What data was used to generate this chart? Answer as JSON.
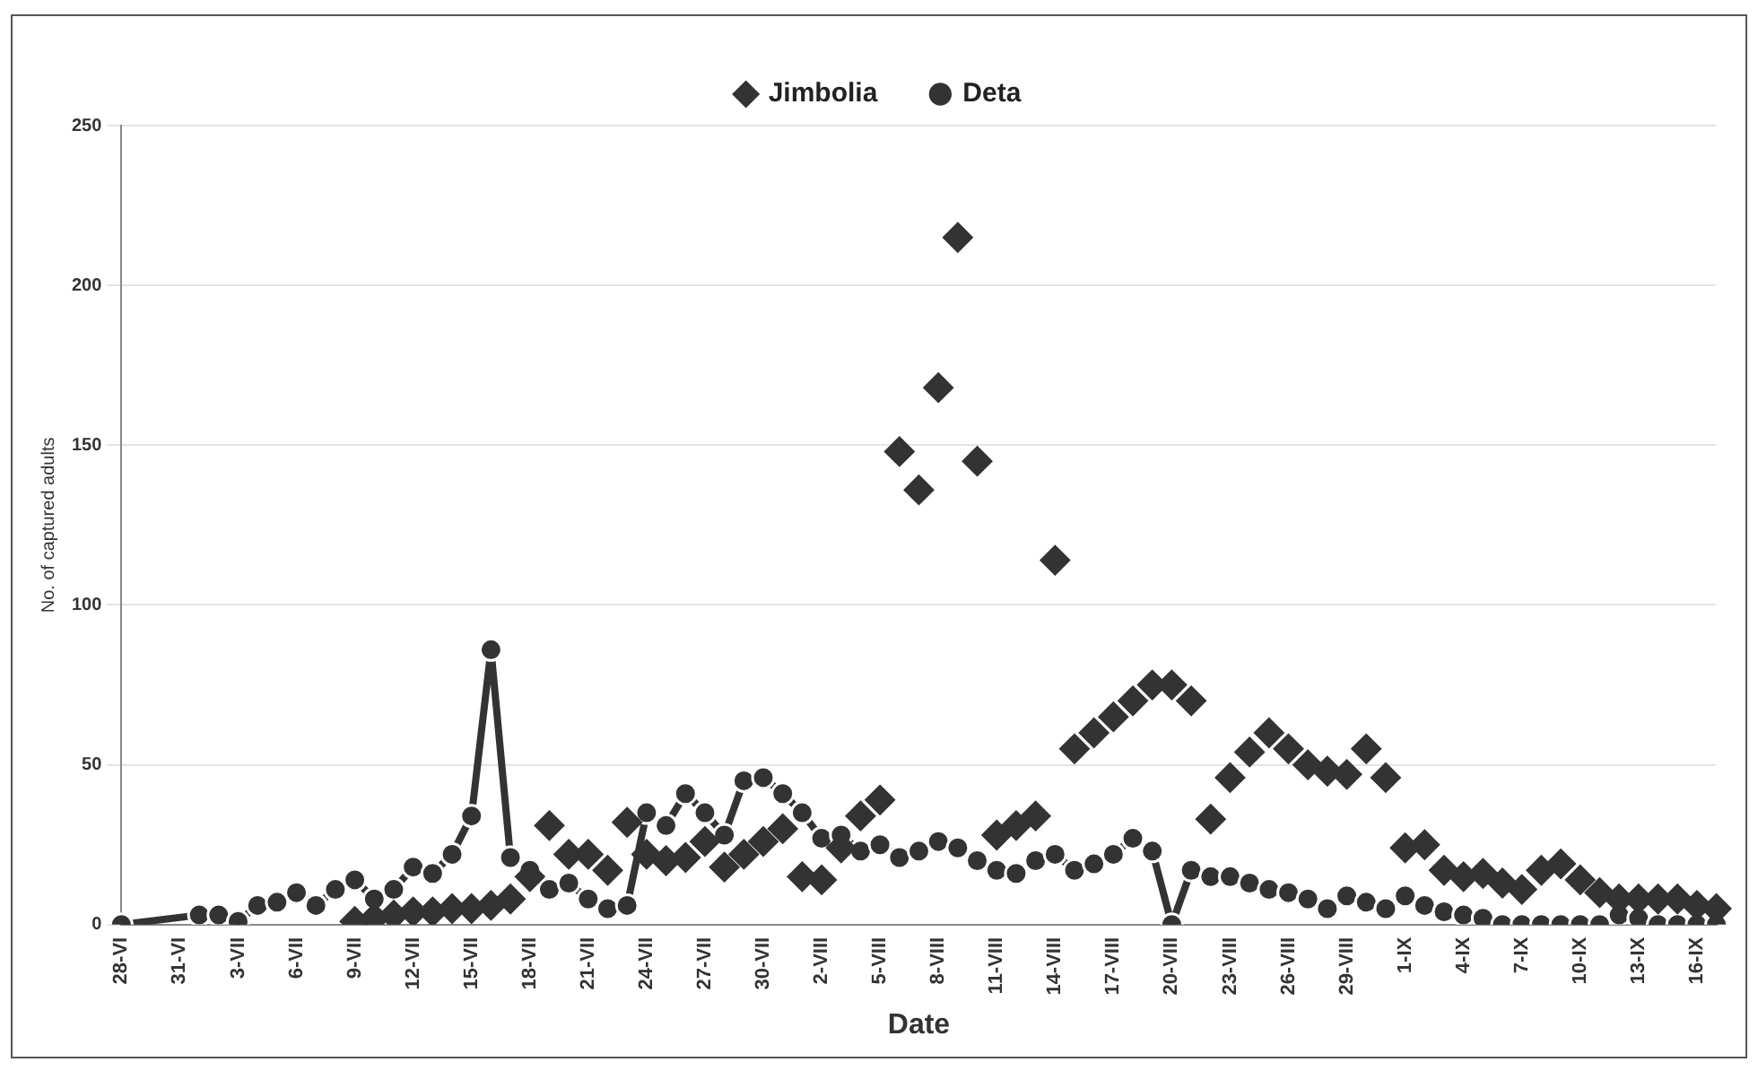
{
  "chart_data": {
    "type": "line",
    "xlabel": "Date",
    "ylabel": "No. of captured adults",
    "categories": [
      "28-VI",
      null,
      null,
      "31-VI",
      null,
      null,
      "3-VII",
      null,
      null,
      "6-VII",
      null,
      null,
      "9-VII",
      null,
      null,
      "12-VII",
      null,
      null,
      "15-VII",
      null,
      null,
      "18-VII",
      null,
      null,
      "21-VII",
      null,
      null,
      "24-VII",
      null,
      null,
      "27-VII",
      null,
      null,
      "30-VII",
      null,
      null,
      "2-VIII",
      null,
      null,
      "5-VIII",
      null,
      null,
      "8-VIII",
      null,
      null,
      "11-VIII",
      null,
      null,
      "14-VIII",
      null,
      null,
      "17-VIII",
      null,
      null,
      "20-VIII",
      null,
      null,
      "23-VIII",
      null,
      null,
      "26-VIII",
      null,
      null,
      "29-VIII",
      null,
      null,
      "1-IX",
      null,
      null,
      "4-IX",
      null,
      null,
      "7-IX",
      null,
      null,
      "10-IX",
      null,
      null,
      "13-IX",
      null,
      null,
      "16-IX",
      null
    ],
    "series": [
      {
        "name": "Jimbolia",
        "type": "scatter",
        "marker": "diamond",
        "color": "#333333",
        "values": [
          null,
          null,
          null,
          null,
          null,
          null,
          null,
          null,
          null,
          null,
          null,
          null,
          1,
          2,
          3,
          4,
          4,
          5,
          5,
          6,
          8,
          15,
          31,
          22,
          22,
          17,
          32,
          22,
          20,
          21,
          26,
          18,
          22,
          26,
          30,
          15,
          14,
          24,
          34,
          39,
          148,
          136,
          168,
          215,
          145,
          28,
          31,
          34,
          114,
          55,
          60,
          65,
          70,
          75,
          75,
          70,
          33,
          46,
          54,
          60,
          55,
          50,
          48,
          47,
          55,
          46,
          24,
          25,
          17,
          15,
          16,
          13,
          11,
          17,
          19,
          14,
          10,
          8,
          8,
          8,
          8,
          6,
          5
        ]
      },
      {
        "name": "Deta",
        "marker": "circle",
        "color": "#333333",
        "values": [
          0,
          null,
          null,
          null,
          3,
          3,
          1,
          6,
          7,
          10,
          6,
          11,
          14,
          8,
          11,
          18,
          16,
          22,
          34,
          86,
          21,
          17,
          11,
          13,
          8,
          5,
          6,
          35,
          31,
          41,
          35,
          28,
          45,
          46,
          41,
          35,
          27,
          28,
          23,
          25,
          21,
          23,
          26,
          24,
          20,
          17,
          16,
          20,
          22,
          17,
          19,
          22,
          27,
          23,
          0,
          17,
          15,
          15,
          13,
          11,
          10,
          8,
          5,
          9,
          7,
          5,
          9,
          6,
          4,
          3,
          2,
          0,
          0,
          0,
          0,
          0,
          0,
          3,
          2,
          0,
          0,
          0,
          0
        ]
      }
    ],
    "ylim": [
      0,
      250
    ],
    "yticks": [
      0,
      50,
      100,
      150,
      200,
      250
    ],
    "grid": "y",
    "legend": "top"
  }
}
